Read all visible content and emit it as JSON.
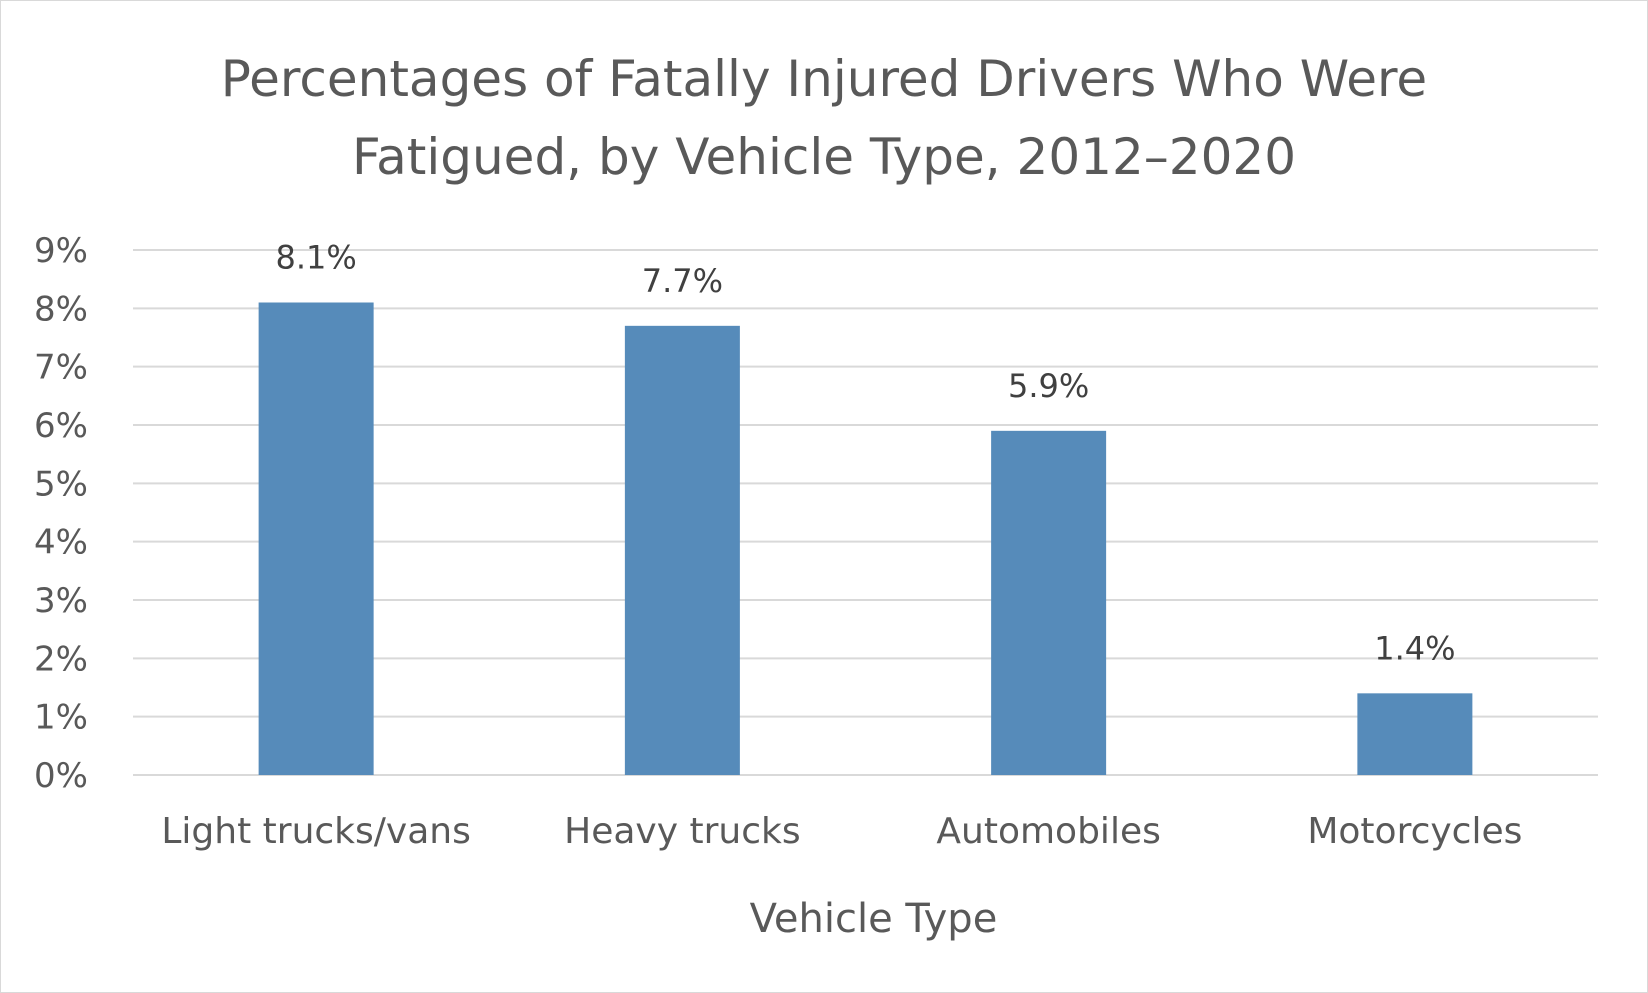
{
  "chart_data": {
    "type": "bar",
    "title": [
      "Percentages of Fatally Injured Drivers Who Were",
      "Fatigued, by Vehicle Type, 2012–2020"
    ],
    "xlabel": "Vehicle Type",
    "ylabel": "",
    "categories": [
      "Light trucks/vans",
      "Heavy trucks",
      "Automobiles",
      "Motorcycles"
    ],
    "values": [
      8.1,
      7.7,
      5.9,
      1.4
    ],
    "value_labels": [
      "8.1%",
      "7.7%",
      "5.9%",
      "1.4%"
    ],
    "ylim": [
      0,
      9
    ],
    "yticks": [
      "0%",
      "1%",
      "2%",
      "3%",
      "4%",
      "5%",
      "6%",
      "7%",
      "8%",
      "9%"
    ],
    "grid": true,
    "legend": "none",
    "colors": {
      "bar": "#568bba",
      "grid": "#d9d9d9",
      "text": "#595959"
    }
  }
}
